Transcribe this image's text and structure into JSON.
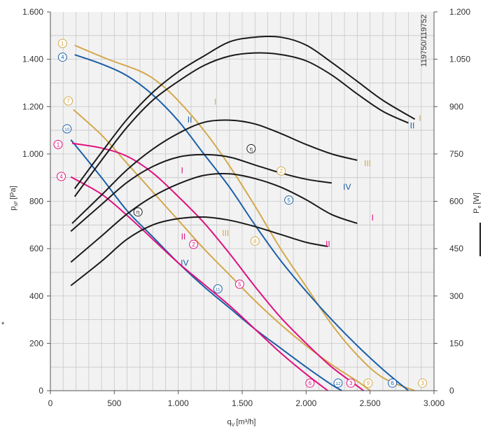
{
  "chart_data": {
    "type": "line",
    "xlabel": "q",
    "xlabel_sub": "V",
    "xlabel_unit": "[m³/h]",
    "ylabel_left": "p",
    "ylabel_left_sub": "sF",
    "ylabel_left_unit": "[Pa]",
    "ylabel_right": "P",
    "ylabel_right_sub": "e",
    "ylabel_right_unit": "[W]",
    "side_note": "119750/119752",
    "asterisk": "*",
    "xlim": [
      0,
      3000
    ],
    "ylim_left": [
      0,
      1600
    ],
    "ylim_right": [
      0,
      1200
    ],
    "x_ticks": [
      {
        "value": 0,
        "label": "0"
      },
      {
        "value": 500,
        "label": "500"
      },
      {
        "value": 1000,
        "label": "1.000"
      },
      {
        "value": 1500,
        "label": "1.500"
      },
      {
        "value": 2000,
        "label": "2.000"
      },
      {
        "value": 2500,
        "label": "2.500"
      },
      {
        "value": 3000,
        "label": "3.000"
      }
    ],
    "y_left_ticks": [
      {
        "value": 0,
        "label": "0"
      },
      {
        "value": 200,
        "label": "200"
      },
      {
        "value": 400,
        "label": "400"
      },
      {
        "value": 600,
        "label": "600"
      },
      {
        "value": 800,
        "label": "800"
      },
      {
        "value": 1000,
        "label": "1.000"
      },
      {
        "value": 1200,
        "label": "1.200"
      },
      {
        "value": 1400,
        "label": "1.400"
      },
      {
        "value": 1600,
        "label": "1.600"
      }
    ],
    "y_right_ticks": [
      {
        "value": 0,
        "label": "0"
      },
      {
        "value": 150,
        "label": "150"
      },
      {
        "value": 300,
        "label": "300"
      },
      {
        "value": 450,
        "label": "450"
      },
      {
        "value": 600,
        "label": "600"
      },
      {
        "value": 750,
        "label": "750"
      },
      {
        "value": 900,
        "label": "900"
      },
      {
        "value": 1050,
        "label": "1.050"
      },
      {
        "value": 1200,
        "label": "1.200"
      }
    ],
    "grid": true,
    "colors": {
      "gold": "#d4a84b",
      "blue": "#1a5fa8",
      "magenta": "#e0117f",
      "black": "#1a1a1a",
      "grid": "#c8c8c8",
      "plot_bg": "#f2f2f2"
    },
    "pressure_series": [
      {
        "color": "gold",
        "points": [
          [
            190,
            1459
          ],
          [
            450,
            1400
          ],
          [
            700,
            1350
          ],
          [
            850,
            1300
          ],
          [
            1000,
            1225
          ],
          [
            1200,
            1100
          ],
          [
            1400,
            950
          ],
          [
            1600,
            780
          ],
          [
            1800,
            600
          ],
          [
            2000,
            440
          ],
          [
            2200,
            280
          ],
          [
            2400,
            150
          ],
          [
            2600,
            55
          ],
          [
            2850,
            0
          ]
        ]
      },
      {
        "color": "blue",
        "points": [
          [
            190,
            1419
          ],
          [
            400,
            1380
          ],
          [
            600,
            1330
          ],
          [
            800,
            1250
          ],
          [
            1000,
            1140
          ],
          [
            1200,
            1000
          ],
          [
            1400,
            860
          ],
          [
            1600,
            700
          ],
          [
            1800,
            550
          ],
          [
            2000,
            420
          ],
          [
            2200,
            300
          ],
          [
            2400,
            190
          ],
          [
            2600,
            90
          ],
          [
            2800,
            0
          ]
        ]
      },
      {
        "color": "gold",
        "points": [
          [
            180,
            1187
          ],
          [
            400,
            1080
          ],
          [
            600,
            960
          ],
          [
            800,
            840
          ],
          [
            1000,
            720
          ],
          [
            1200,
            600
          ],
          [
            1400,
            490
          ],
          [
            1600,
            380
          ],
          [
            1800,
            280
          ],
          [
            2000,
            190
          ],
          [
            2200,
            110
          ],
          [
            2400,
            40
          ],
          [
            2500,
            0
          ]
        ]
      },
      {
        "color": "blue",
        "points": [
          [
            160,
            1060
          ],
          [
            400,
            900
          ],
          [
            600,
            760
          ],
          [
            800,
            650
          ],
          [
            1000,
            540
          ],
          [
            1200,
            440
          ],
          [
            1400,
            350
          ],
          [
            1600,
            260
          ],
          [
            1800,
            180
          ],
          [
            2000,
            100
          ],
          [
            2200,
            25
          ],
          [
            2280,
            0
          ]
        ]
      },
      {
        "color": "magenta",
        "points": [
          [
            170,
            1045
          ],
          [
            400,
            1025
          ],
          [
            600,
            990
          ],
          [
            800,
            920
          ],
          [
            1000,
            820
          ],
          [
            1200,
            710
          ],
          [
            1400,
            580
          ],
          [
            1600,
            440
          ],
          [
            1800,
            310
          ],
          [
            2000,
            200
          ],
          [
            2200,
            100
          ],
          [
            2400,
            20
          ],
          [
            2450,
            0
          ]
        ]
      },
      {
        "color": "magenta",
        "points": [
          [
            160,
            903
          ],
          [
            400,
            830
          ],
          [
            600,
            740
          ],
          [
            800,
            640
          ],
          [
            1000,
            540
          ],
          [
            1200,
            450
          ],
          [
            1400,
            360
          ],
          [
            1600,
            260
          ],
          [
            1800,
            160
          ],
          [
            2000,
            70
          ],
          [
            2170,
            0
          ]
        ]
      }
    ],
    "power_series": [
      {
        "color": "black",
        "points": [
          [
            190,
            640
          ],
          [
            400,
            755
          ],
          [
            600,
            860
          ],
          [
            800,
            945
          ],
          [
            1000,
            1010
          ],
          [
            1200,
            1060
          ],
          [
            1400,
            1105
          ],
          [
            1600,
            1120
          ],
          [
            1800,
            1120
          ],
          [
            2000,
            1095
          ],
          [
            2200,
            1040
          ],
          [
            2400,
            980
          ],
          [
            2600,
            920
          ],
          [
            2850,
            860
          ]
        ]
      },
      {
        "color": "black",
        "points": [
          [
            190,
            615
          ],
          [
            400,
            730
          ],
          [
            600,
            835
          ],
          [
            800,
            920
          ],
          [
            1000,
            980
          ],
          [
            1200,
            1030
          ],
          [
            1400,
            1060
          ],
          [
            1600,
            1070
          ],
          [
            1800,
            1065
          ],
          [
            2000,
            1045
          ],
          [
            2200,
            1000
          ],
          [
            2400,
            940
          ],
          [
            2600,
            885
          ],
          [
            2800,
            848
          ]
        ]
      },
      {
        "color": "black",
        "points": [
          [
            170,
            530
          ],
          [
            400,
            620
          ],
          [
            600,
            700
          ],
          [
            800,
            765
          ],
          [
            1000,
            815
          ],
          [
            1200,
            850
          ],
          [
            1400,
            857
          ],
          [
            1600,
            845
          ],
          [
            1800,
            815
          ],
          [
            2000,
            780
          ],
          [
            2200,
            750
          ],
          [
            2400,
            730
          ]
        ]
      },
      {
        "color": "black",
        "points": [
          [
            160,
            505
          ],
          [
            400,
            590
          ],
          [
            600,
            660
          ],
          [
            800,
            710
          ],
          [
            1000,
            740
          ],
          [
            1200,
            748
          ],
          [
            1400,
            740
          ],
          [
            1600,
            715
          ],
          [
            1800,
            690
          ],
          [
            2000,
            670
          ],
          [
            2200,
            658
          ]
        ]
      },
      {
        "color": "black",
        "points": [
          [
            160,
            407
          ],
          [
            400,
            490
          ],
          [
            600,
            560
          ],
          [
            800,
            615
          ],
          [
            1000,
            655
          ],
          [
            1200,
            682
          ],
          [
            1400,
            687
          ],
          [
            1600,
            672
          ],
          [
            1800,
            645
          ],
          [
            2000,
            605
          ],
          [
            2200,
            558
          ],
          [
            2400,
            530
          ]
        ]
      },
      {
        "color": "black",
        "points": [
          [
            160,
            333
          ],
          [
            400,
            410
          ],
          [
            600,
            480
          ],
          [
            800,
            525
          ],
          [
            1000,
            545
          ],
          [
            1200,
            550
          ],
          [
            1400,
            540
          ],
          [
            1600,
            520
          ],
          [
            1800,
            495
          ],
          [
            2000,
            470
          ],
          [
            2170,
            457
          ]
        ]
      }
    ],
    "roman_labels": [
      {
        "text": "I",
        "color": "gold",
        "x": 1290,
        "y": 1220
      },
      {
        "text": "II",
        "color": "blue",
        "x": 1090,
        "y": 1145
      },
      {
        "text": "I",
        "color": "magenta",
        "x": 1030,
        "y": 930
      },
      {
        "text": "III",
        "color": "gold",
        "x": 1370,
        "y": 665
      },
      {
        "text": "II",
        "color": "magenta",
        "x": 1040,
        "y": 650
      },
      {
        "text": "IV",
        "color": "blue",
        "x": 1050,
        "y": 540
      },
      {
        "text": "I",
        "color": "gold",
        "x": 2890,
        "y": 1150
      },
      {
        "text": "II",
        "color": "blue",
        "x": 2830,
        "y": 1120
      },
      {
        "text": "III",
        "color": "gold",
        "x": 2480,
        "y": 960
      },
      {
        "text": "IV",
        "color": "blue",
        "x": 2320,
        "y": 860
      },
      {
        "text": "I",
        "color": "magenta",
        "x": 2520,
        "y": 730
      },
      {
        "text": "II",
        "color": "magenta",
        "x": 2170,
        "y": 620
      }
    ],
    "circled_labels": [
      {
        "text": "1",
        "color": "gold",
        "x": 95,
        "y": 1467
      },
      {
        "text": "4",
        "color": "blue",
        "x": 95,
        "y": 1409
      },
      {
        "text": "7",
        "color": "gold",
        "x": 140,
        "y": 1224
      },
      {
        "text": "10",
        "color": "blue",
        "x": 130,
        "y": 1106
      },
      {
        "text": "1",
        "color": "magenta",
        "x": 60,
        "y": 1040
      },
      {
        "text": "4",
        "color": "magenta",
        "x": 85,
        "y": 905
      },
      {
        "text": "η",
        "color": "black",
        "x": 1570,
        "y": 1022
      },
      {
        "text": "η",
        "color": "black",
        "x": 685,
        "y": 755
      },
      {
        "text": "2",
        "color": "gold",
        "x": 1805,
        "y": 928
      },
      {
        "text": "5",
        "color": "blue",
        "x": 1865,
        "y": 805
      },
      {
        "text": "2",
        "color": "magenta",
        "x": 1120,
        "y": 618
      },
      {
        "text": "8",
        "color": "gold",
        "x": 1600,
        "y": 632
      },
      {
        "text": "5",
        "color": "magenta",
        "x": 1480,
        "y": 450
      },
      {
        "text": "11",
        "color": "blue",
        "x": 1310,
        "y": 430
      },
      {
        "text": "6",
        "color": "magenta",
        "x": 2030,
        "y": 32
      },
      {
        "text": "12",
        "color": "blue",
        "x": 2250,
        "y": 32
      },
      {
        "text": "3",
        "color": "magenta",
        "x": 2350,
        "y": 32
      },
      {
        "text": "9",
        "color": "gold",
        "x": 2485,
        "y": 32
      },
      {
        "text": "6",
        "color": "blue",
        "x": 2675,
        "y": 32
      },
      {
        "text": "3",
        "color": "gold",
        "x": 2910,
        "y": 32
      }
    ]
  }
}
